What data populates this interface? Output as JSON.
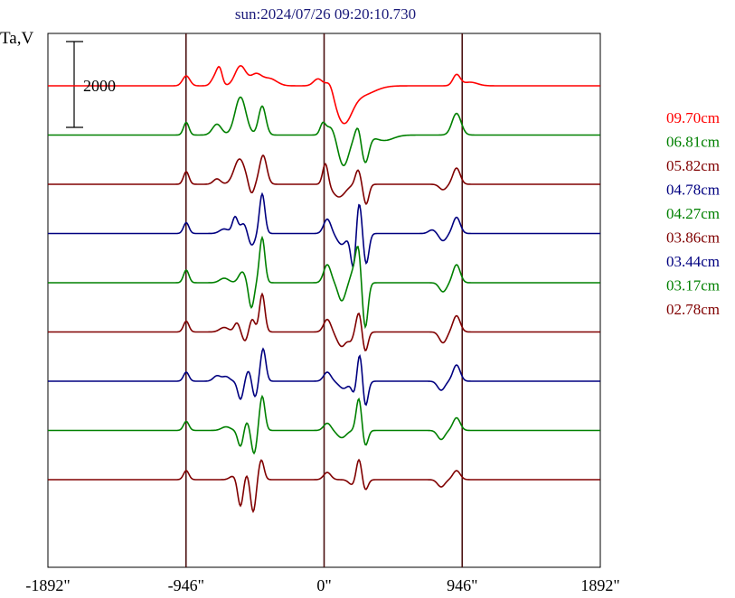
{
  "chart_data": {
    "type": "line",
    "title": "sun:2024/07/26 09:20:10.730",
    "ylabel": "Ta,V",
    "scale_bar_label": "2000",
    "x_ticks": [
      "-1892\"",
      "-946\"",
      "0\"",
      "946\"",
      "1892\""
    ],
    "x_tick_values": [
      -1892,
      -946,
      0,
      946,
      1892
    ],
    "xlim": [
      -1892,
      1892
    ],
    "vertical_lines_at": [
      -946,
      0,
      946
    ],
    "grid": false,
    "legend_position": "right",
    "series": [
      {
        "name": "09.70cm",
        "color": "#ff0000",
        "offset": 0
      },
      {
        "name": "06.81cm",
        "color": "#008000",
        "offset": 1
      },
      {
        "name": "05.82cm",
        "color": "#800000",
        "offset": 2
      },
      {
        "name": "04.78cm",
        "color": "#000080",
        "offset": 3
      },
      {
        "name": "04.27cm",
        "color": "#008000",
        "offset": 4
      },
      {
        "name": "03.86cm",
        "color": "#800000",
        "offset": 5
      },
      {
        "name": "03.44cm",
        "color": "#000080",
        "offset": 6
      },
      {
        "name": "03.17cm",
        "color": "#008000",
        "offset": 7
      },
      {
        "name": "02.78cm",
        "color": "#800000",
        "offset": 8
      }
    ]
  }
}
